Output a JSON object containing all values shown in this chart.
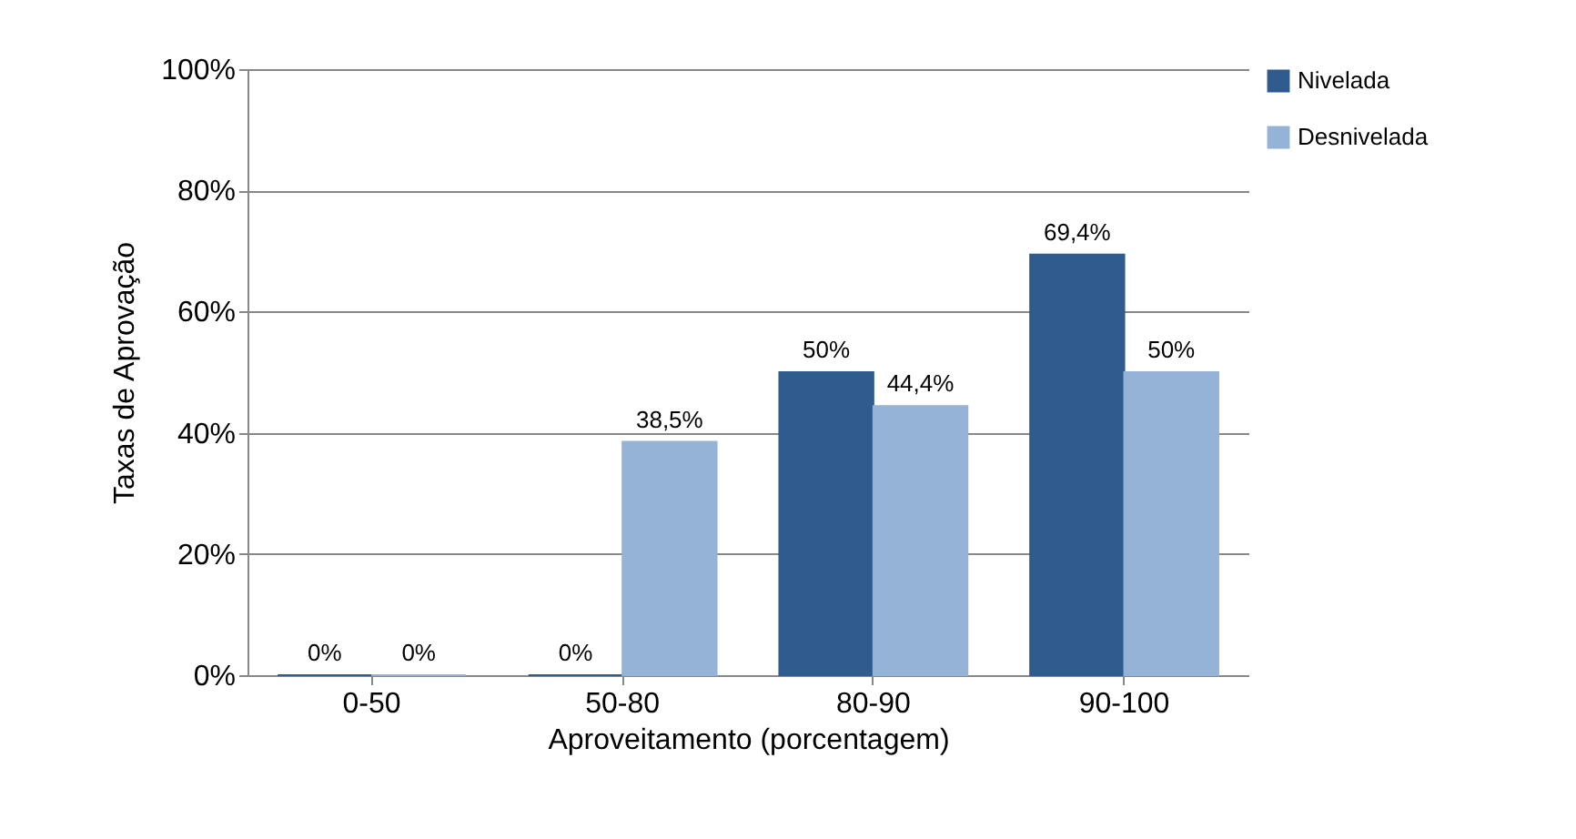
{
  "chart_data": {
    "type": "bar",
    "xlabel": "Aproveitamento (porcentagem)",
    "ylabel": "Taxas de Aprovação",
    "categories": [
      "0-50",
      "50-80",
      "80-90",
      "90-100"
    ],
    "series": [
      {
        "name": "Nivelada",
        "color": "#2f5b8f",
        "values": [
          0,
          0,
          50,
          69.4
        ],
        "value_labels": [
          "0%",
          "0%",
          "50%",
          "69,4%"
        ]
      },
      {
        "name": "Desnivelada",
        "color": "#95b3d7",
        "values": [
          0,
          38.5,
          44.4,
          50
        ],
        "value_labels": [
          "0%",
          "38,5%",
          "44,4%",
          "50%"
        ]
      }
    ],
    "ylim": [
      0,
      100
    ],
    "yticks": [
      {
        "value": 0,
        "label": "0%"
      },
      {
        "value": 20,
        "label": "20%"
      },
      {
        "value": 40,
        "label": "40%"
      },
      {
        "value": 60,
        "label": "60%"
      },
      {
        "value": 80,
        "label": "80%"
      },
      {
        "value": 100,
        "label": "100%"
      }
    ],
    "grid": "y",
    "legend": "right"
  }
}
